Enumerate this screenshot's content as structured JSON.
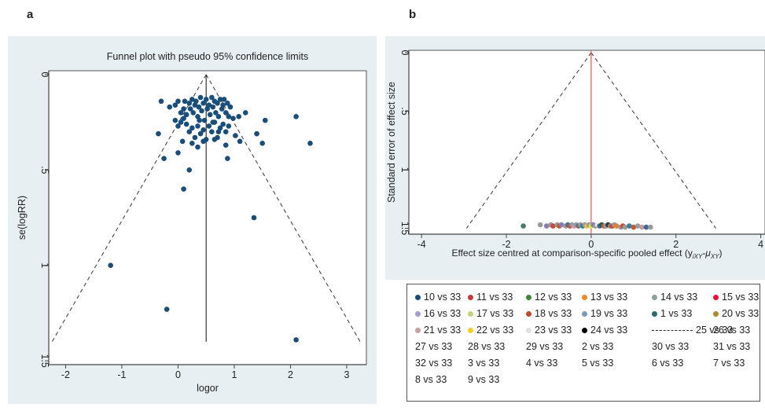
{
  "panels": {
    "a_label": "a",
    "b_label": "b"
  },
  "chart_data": [
    {
      "type": "scatter",
      "title": "Funnel plot with pseudo 95% confidence limits",
      "xlabel": "logor",
      "ylabel": "se(logRR)",
      "xlim": [
        -2.3,
        3.35
      ],
      "ylim": [
        1.52,
        -0.02
      ],
      "y_reversed": true,
      "x_ticks": [
        -2,
        -1,
        0,
        1,
        2,
        3
      ],
      "y_ticks": [
        0,
        0.5,
        1,
        1.5
      ],
      "y_tick_labels": [
        "0",
        ".5",
        "1",
        "1.5"
      ],
      "pooled_effect": 0.5,
      "funnel_base_se": 1.4,
      "funnel_lower_x": -2.24,
      "funnel_upper_x": 3.24,
      "point_color": "#1a4e7a",
      "points": [
        [
          -0.3,
          0.14
        ],
        [
          -0.15,
          0.17
        ],
        [
          -0.05,
          0.16
        ],
        [
          0.0,
          0.14
        ],
        [
          0.05,
          0.2
        ],
        [
          0.1,
          0.18
        ],
        [
          0.12,
          0.14
        ],
        [
          0.15,
          0.21
        ],
        [
          0.2,
          0.15
        ],
        [
          0.22,
          0.18
        ],
        [
          0.25,
          0.13
        ],
        [
          0.27,
          0.2
        ],
        [
          0.3,
          0.16
        ],
        [
          0.32,
          0.14
        ],
        [
          0.35,
          0.22
        ],
        [
          0.37,
          0.17
        ],
        [
          0.4,
          0.12
        ],
        [
          0.42,
          0.19
        ],
        [
          0.45,
          0.15
        ],
        [
          0.47,
          0.24
        ],
        [
          0.5,
          0.13
        ],
        [
          0.52,
          0.18
        ],
        [
          0.55,
          0.16
        ],
        [
          0.57,
          0.21
        ],
        [
          0.6,
          0.12
        ],
        [
          0.62,
          0.17
        ],
        [
          0.65,
          0.14
        ],
        [
          0.67,
          0.2
        ],
        [
          0.7,
          0.15
        ],
        [
          0.72,
          0.22
        ],
        [
          0.75,
          0.13
        ],
        [
          0.78,
          0.18
        ],
        [
          0.8,
          0.16
        ],
        [
          0.82,
          0.13
        ],
        [
          0.85,
          0.2
        ],
        [
          0.88,
          0.15
        ],
        [
          0.9,
          0.22
        ],
        [
          0.93,
          0.17
        ],
        [
          0.15,
          0.26
        ],
        [
          0.2,
          0.3
        ],
        [
          0.25,
          0.28
        ],
        [
          0.3,
          0.33
        ],
        [
          0.35,
          0.27
        ],
        [
          0.4,
          0.31
        ],
        [
          0.45,
          0.29
        ],
        [
          0.5,
          0.34
        ],
        [
          0.55,
          0.27
        ],
        [
          0.6,
          0.3
        ],
        [
          0.65,
          0.25
        ],
        [
          0.7,
          0.33
        ],
        [
          0.75,
          0.28
        ],
        [
          0.8,
          0.26
        ],
        [
          0.85,
          0.3
        ],
        [
          0.1,
          0.23
        ],
        [
          0.05,
          0.25
        ],
        [
          0.0,
          0.27
        ],
        [
          -0.05,
          0.24
        ],
        [
          0.38,
          0.24
        ],
        [
          0.62,
          0.25
        ],
        [
          0.72,
          0.3
        ],
        [
          0.9,
          0.27
        ],
        [
          0.98,
          0.23
        ],
        [
          1.02,
          0.32
        ],
        [
          1.08,
          0.22
        ],
        [
          1.1,
          0.35
        ],
        [
          1.2,
          0.2
        ],
        [
          1.4,
          0.31
        ],
        [
          1.5,
          0.36
        ],
        [
          1.55,
          0.24
        ],
        [
          2.1,
          0.22
        ],
        [
          2.35,
          0.36
        ],
        [
          -0.35,
          0.31
        ],
        [
          -0.25,
          0.44
        ],
        [
          0.0,
          0.41
        ],
        [
          0.08,
          0.35
        ],
        [
          0.25,
          0.36
        ],
        [
          0.45,
          0.35
        ],
        [
          0.65,
          0.34
        ],
        [
          0.88,
          0.44
        ],
        [
          0.85,
          0.37
        ],
        [
          0.35,
          0.38
        ],
        [
          0.2,
          0.5
        ],
        [
          0.1,
          0.6
        ],
        [
          1.35,
          0.75
        ],
        [
          -1.2,
          1.0
        ],
        [
          -0.2,
          1.23
        ],
        [
          2.1,
          1.39
        ]
      ]
    },
    {
      "type": "scatter",
      "title": "",
      "xlabel": "Effect size centred at comparison-specific pooled effect (y",
      "xlabel_sub1": "iXY",
      "xlabel_mid": "-μ",
      "xlabel_sub2": "XY",
      "xlabel_end": ")",
      "ylabel": "Standard error of effect size",
      "xlim": [
        -4.3,
        4.1
      ],
      "ylim": [
        1.55,
        -0.02
      ],
      "y_reversed": true,
      "x_ticks": [
        -4,
        -2,
        0,
        2,
        4
      ],
      "y_ticks": [
        0,
        0.5,
        1,
        1.5
      ],
      "y_tick_labels": [
        "0",
        ".5",
        "1",
        "1.5"
      ],
      "reference_line_color": "#ff4c4c",
      "funnel_base_se": 1.5,
      "funnel_lower_x": -2.94,
      "funnel_upper_x": 2.94,
      "points": [
        [
          -1.6,
          1.48,
          "#4a7a6a"
        ],
        [
          -1.2,
          1.47,
          "#9a9a9a"
        ],
        [
          -1.05,
          1.48,
          "#8a7ab8"
        ],
        [
          -0.95,
          1.47,
          "#9a9a9a"
        ],
        [
          -0.9,
          1.48,
          "#c84a3a"
        ],
        [
          -0.8,
          1.47,
          "#9a9a9a"
        ],
        [
          -0.75,
          1.48,
          "#bd5d2d"
        ],
        [
          -0.7,
          1.47,
          "#8a7ab8"
        ],
        [
          -0.6,
          1.48,
          "#9a9a9a"
        ],
        [
          -0.55,
          1.47,
          "#3a7a9a"
        ],
        [
          -0.5,
          1.48,
          "#c84a3a"
        ],
        [
          -0.45,
          1.47,
          "#9a9a9a"
        ],
        [
          -0.4,
          1.48,
          "#c89a9a"
        ],
        [
          -0.35,
          1.47,
          "#7aa0c0"
        ],
        [
          -0.3,
          1.48,
          "#7a6a6a"
        ],
        [
          -0.25,
          1.47,
          "#9a9a9a"
        ],
        [
          -0.2,
          1.48,
          "#3a7a9a"
        ],
        [
          -0.15,
          1.47,
          "#9a9a9a"
        ],
        [
          -0.1,
          1.48,
          "#f0c040"
        ],
        [
          -0.05,
          1.47,
          "#9a9a9a"
        ],
        [
          0.0,
          1.48,
          "#e0e040"
        ],
        [
          0.05,
          1.47,
          "#8a7ab8"
        ],
        [
          0.1,
          1.48,
          "#9a9a9a"
        ],
        [
          0.15,
          1.47,
          "#e8e8e8"
        ],
        [
          0.2,
          1.48,
          "#3a6a9a"
        ],
        [
          0.25,
          1.47,
          "#2a5a4a"
        ],
        [
          0.3,
          1.48,
          "#bd5d2d"
        ],
        [
          0.35,
          1.48,
          "#9a9a9a"
        ],
        [
          0.4,
          1.47,
          "#1a3a5a"
        ],
        [
          0.45,
          1.48,
          "#a08060"
        ],
        [
          0.5,
          1.48,
          "#c84a3a"
        ],
        [
          0.55,
          1.47,
          "#9a9a9a"
        ],
        [
          0.6,
          1.48,
          "#e08030"
        ],
        [
          0.7,
          1.49,
          "#9a9a9a"
        ],
        [
          0.75,
          1.48,
          "#c84a3a"
        ],
        [
          0.8,
          1.49,
          "#9a9a9a"
        ],
        [
          0.9,
          1.48,
          "#3a7a9a"
        ],
        [
          1.0,
          1.49,
          "#bd5d2d"
        ],
        [
          1.1,
          1.48,
          "#9a9a9a"
        ],
        [
          1.2,
          1.49,
          "#c89a9a"
        ],
        [
          1.3,
          1.49,
          "#3a6a9a"
        ],
        [
          1.4,
          1.49,
          "#9a9a9a"
        ]
      ]
    }
  ],
  "legend": {
    "items": [
      {
        "label": "10 vs 33",
        "color": "#1a4e7a",
        "col": 0,
        "row": 0
      },
      {
        "label": "11 vs 33",
        "color": "#c8363c",
        "col": 1,
        "row": 0
      },
      {
        "label": "12 vs 33",
        "color": "#3b8a3b",
        "col": 2,
        "row": 0
      },
      {
        "label": "13 vs 33",
        "color": "#f08a24",
        "col": 3,
        "row": 0
      },
      {
        "label": "14 vs 33",
        "color": "#8aa0a0",
        "col": 4,
        "row": 0
      },
      {
        "label": "15 vs 33",
        "color": "#e8123c",
        "col": 5,
        "row": 0
      },
      {
        "label": "16 vs 33",
        "color": "#a89ad0",
        "col": 0,
        "row": 1
      },
      {
        "label": "17 vs 33",
        "color": "#c8d07a",
        "col": 1,
        "row": 1
      },
      {
        "label": "18 vs 33",
        "color": "#bd4a2a",
        "col": 2,
        "row": 1
      },
      {
        "label": "19 vs 33",
        "color": "#7a9ab8",
        "col": 3,
        "row": 1
      },
      {
        "label": "1 vs 33",
        "color": "#2a6a6a",
        "col": 4,
        "row": 1
      },
      {
        "label": "20 vs 33",
        "color": "#b0882a",
        "col": 5,
        "row": 1
      },
      {
        "label": "21 vs 33",
        "color": "#c8a0a0",
        "col": 0,
        "row": 2
      },
      {
        "label": "22 vs 33",
        "color": "#f4d020",
        "col": 1,
        "row": 2
      },
      {
        "label": "23 vs 33",
        "color": "#e0e0e0",
        "col": 2,
        "row": 2
      },
      {
        "label": "24 vs 33",
        "color": "#000000",
        "col": 3,
        "row": 2
      },
      {
        "label": "25 vs 33",
        "color": "",
        "dashed": true,
        "col": 4,
        "row": 2
      },
      {
        "label": "26 vs 33",
        "color": "",
        "col": 5,
        "row": 2
      },
      {
        "label": "27 vs 33",
        "color": "",
        "col": 0,
        "row": 3
      },
      {
        "label": "28 vs 33",
        "color": "",
        "col": 1,
        "row": 3
      },
      {
        "label": "29 vs 33",
        "color": "",
        "col": 2,
        "row": 3
      },
      {
        "label": "2 vs 33",
        "color": "",
        "col": 3,
        "row": 3
      },
      {
        "label": "30 vs 33",
        "color": "",
        "col": 4,
        "row": 3
      },
      {
        "label": "31 vs 33",
        "color": "",
        "col": 5,
        "row": 3
      },
      {
        "label": "32 vs 33",
        "color": "",
        "col": 0,
        "row": 4
      },
      {
        "label": "3 vs 33",
        "color": "",
        "col": 1,
        "row": 4
      },
      {
        "label": "4 vs 33",
        "color": "",
        "col": 2,
        "row": 4
      },
      {
        "label": "5 vs 33",
        "color": "",
        "col": 3,
        "row": 4
      },
      {
        "label": "6 vs 33",
        "color": "",
        "col": 4,
        "row": 4
      },
      {
        "label": "7 vs 33",
        "color": "",
        "col": 5,
        "row": 4
      },
      {
        "label": "8 vs 33",
        "color": "",
        "col": 0,
        "row": 5
      },
      {
        "label": "9 vs 33",
        "color": "",
        "col": 1,
        "row": 5
      }
    ]
  }
}
